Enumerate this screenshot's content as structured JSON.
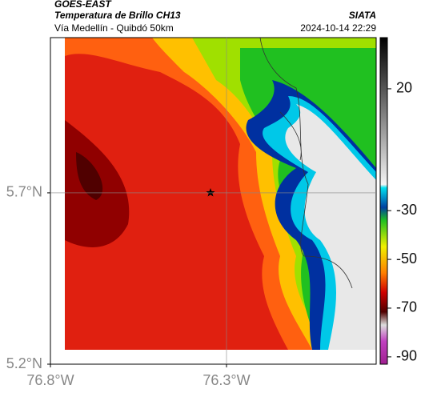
{
  "header": {
    "source": "GOES-EAST",
    "title": "Temperatura de Brillo CH13",
    "subtitle": "Vía Medellín - Quibdó 50km",
    "agency": "SIATA",
    "datetime": "2024-10-14 22:29"
  },
  "map": {
    "xlim": [
      -76.8,
      -75.875
    ],
    "ylim": [
      5.2,
      6.153
    ],
    "xticks": [
      {
        "value": -76.8,
        "label": "76.8°W"
      },
      {
        "value": -76.3,
        "label": "76.3°W"
      }
    ],
    "yticks": [
      {
        "value": 5.2,
        "label": "5.2°N"
      },
      {
        "value": 5.7,
        "label": "5.7°N"
      }
    ],
    "grid": true
  },
  "colorbar": {
    "lim": [
      41,
      -93
    ],
    "ticks": [
      20,
      -30,
      -50,
      -70,
      -90
    ]
  }
}
